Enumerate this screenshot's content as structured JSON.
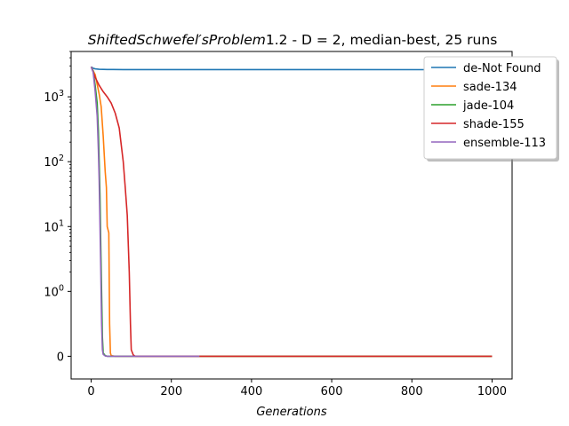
{
  "chart_data": {
    "type": "line",
    "title_italic": "ShiftedSchwefel′sProblem",
    "title_number": "1.2",
    "title_rest": " - D = 2, median-best, 25 runs",
    "xlabel": "Generations",
    "ylabel": "",
    "yscale": "symlog",
    "xlim": [
      -50,
      1050
    ],
    "legend_position": "top-right",
    "x_ticks": [
      0,
      200,
      400,
      600,
      800,
      1000
    ],
    "x_tick_labels": [
      "0",
      "200",
      "400",
      "600",
      "800",
      "1000"
    ],
    "y_ticks": [
      0,
      1,
      10,
      100,
      1000
    ],
    "y_tick_labels": [
      "0",
      "10^0",
      "10^1",
      "10^2",
      "10^3"
    ],
    "series": [
      {
        "name": "de-Not Found",
        "color": "#1f77b4",
        "points": [
          [
            0,
            2900
          ],
          [
            5,
            2760
          ],
          [
            10,
            2700
          ],
          [
            20,
            2660
          ],
          [
            40,
            2640
          ],
          [
            80,
            2630
          ],
          [
            200,
            2625
          ],
          [
            1000,
            2620
          ]
        ]
      },
      {
        "name": "sade-134",
        "color": "#ff7f0e",
        "points": [
          [
            0,
            2900
          ],
          [
            10,
            2200
          ],
          [
            20,
            1100
          ],
          [
            25,
            700
          ],
          [
            30,
            250
          ],
          [
            35,
            70
          ],
          [
            38,
            40
          ],
          [
            40,
            10
          ],
          [
            44,
            8
          ],
          [
            46,
            0.5
          ],
          [
            48,
            0.05
          ],
          [
            50,
            0.01
          ],
          [
            60,
            0
          ],
          [
            1000,
            0
          ]
        ]
      },
      {
        "name": "jade-104",
        "color": "#2ca02c",
        "points": [
          [
            0,
            2900
          ],
          [
            5,
            2500
          ],
          [
            10,
            1500
          ],
          [
            15,
            800
          ],
          [
            18,
            300
          ],
          [
            20,
            100
          ],
          [
            22,
            30
          ],
          [
            24,
            5
          ],
          [
            26,
            1
          ],
          [
            28,
            0.3
          ],
          [
            30,
            0.05
          ],
          [
            35,
            0.01
          ],
          [
            40,
            0
          ],
          [
            1000,
            0
          ]
        ]
      },
      {
        "name": "shade-155",
        "color": "#d62728",
        "points": [
          [
            0,
            2900
          ],
          [
            10,
            2000
          ],
          [
            20,
            1500
          ],
          [
            30,
            1200
          ],
          [
            40,
            1000
          ],
          [
            50,
            800
          ],
          [
            60,
            560
          ],
          [
            70,
            330
          ],
          [
            80,
            100
          ],
          [
            85,
            40
          ],
          [
            90,
            15
          ],
          [
            95,
            2
          ],
          [
            98,
            0.5
          ],
          [
            100,
            0.1
          ],
          [
            105,
            0.02
          ],
          [
            110,
            0
          ],
          [
            1000,
            0
          ]
        ]
      },
      {
        "name": "ensemble-113",
        "color": "#9467bd",
        "points": [
          [
            0,
            2900
          ],
          [
            5,
            2400
          ],
          [
            10,
            1200
          ],
          [
            15,
            500
          ],
          [
            18,
            150
          ],
          [
            20,
            50
          ],
          [
            22,
            10
          ],
          [
            24,
            2
          ],
          [
            26,
            0.5
          ],
          [
            28,
            0.1
          ],
          [
            30,
            0.03
          ],
          [
            35,
            0.005
          ],
          [
            40,
            0
          ],
          [
            270,
            0
          ]
        ]
      }
    ]
  }
}
